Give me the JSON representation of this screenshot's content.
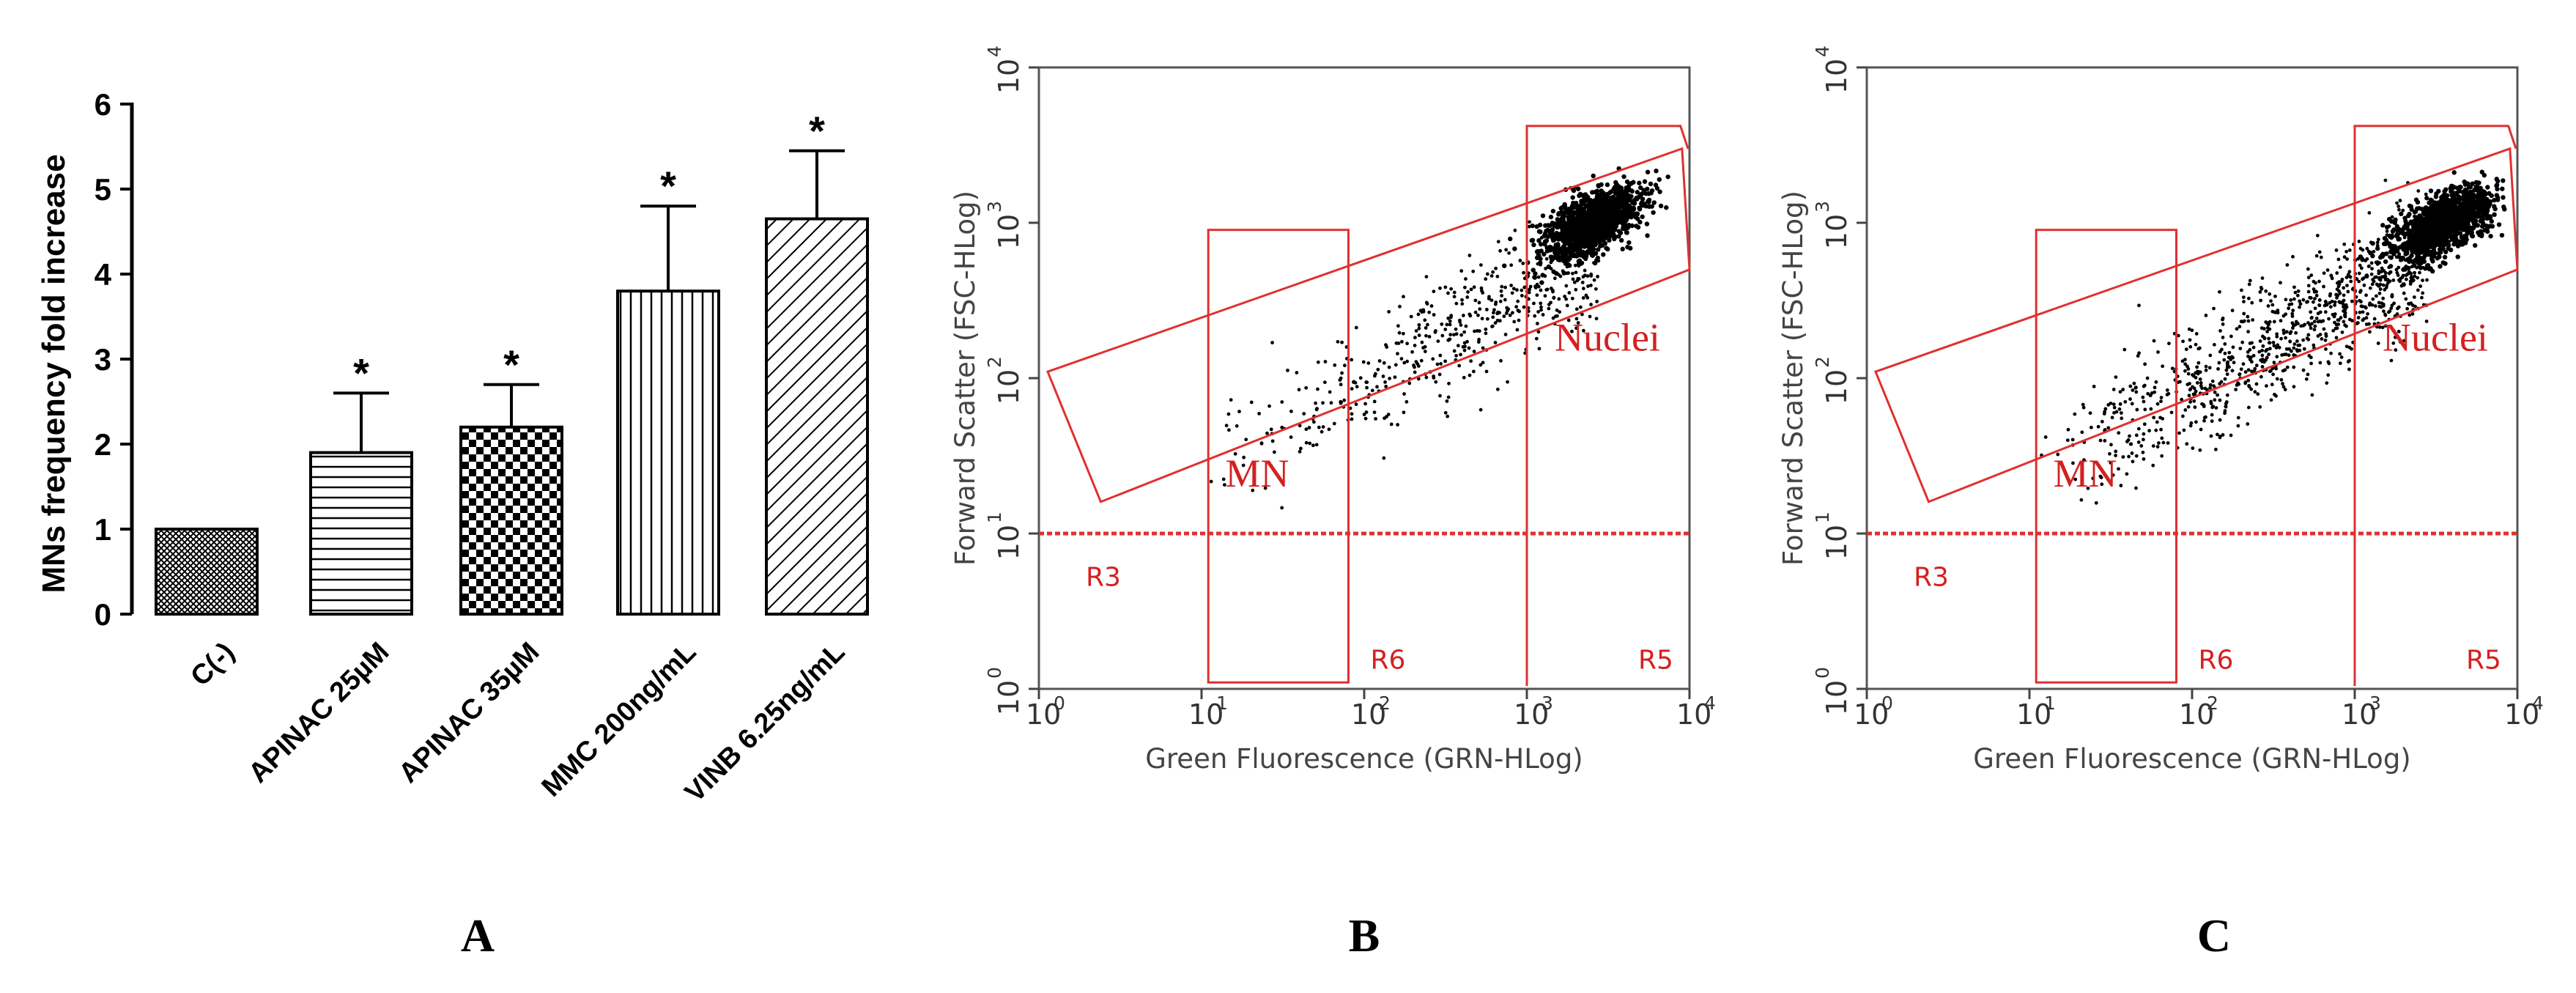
{
  "panels": {
    "a": "A",
    "b": "B",
    "c": "C"
  },
  "colors": {
    "gate": "#e03030",
    "dots": "#000000",
    "bar_fill": "#ffffff",
    "bar_edge": "#000000"
  },
  "chart_data": [
    {
      "panel": "A",
      "type": "bar",
      "xlabel": "",
      "ylabel": "MNs frequency fold increase",
      "ylim": [
        0,
        6
      ],
      "yticks": [
        "0",
        "1",
        "2",
        "3",
        "4",
        "5",
        "6"
      ],
      "categories": [
        "C(-)",
        "APINAC 25µM",
        "APINAC 35µM",
        "MMC 200ng/mL",
        "VINB 6.25ng/mL"
      ],
      "values": [
        1.0,
        1.9,
        2.2,
        3.8,
        4.65
      ],
      "error_upper": [
        0.0,
        0.7,
        0.5,
        1.0,
        0.8
      ],
      "annotations": [
        "",
        "*",
        "*",
        "*",
        "*"
      ],
      "patterns": [
        "crosshatch-dense",
        "horizontal-lines",
        "checkerboard",
        "vertical-lines",
        "diagonal-lines"
      ]
    },
    {
      "panel": "B",
      "type": "scatter",
      "xlabel": "Green Fluorescence (GRN-HLog)",
      "ylabel": "Forward Scatter (FSC-HLog)",
      "x_scale": "log",
      "y_scale": "log",
      "xlim": [
        1,
        10000
      ],
      "ylim": [
        1,
        10000
      ],
      "xticks": [
        "10",
        "10",
        "10",
        "10",
        "10"
      ],
      "xtick_exponents": [
        "0",
        "1",
        "2",
        "3",
        "4"
      ],
      "yticks": [
        "10",
        "10",
        "10",
        "10",
        "10"
      ],
      "ytick_exponents": [
        "0",
        "1",
        "2",
        "3",
        "4"
      ],
      "gates": {
        "nuclei": "Nuclei",
        "mn": "MN",
        "r3": "R3",
        "r5": "R5",
        "r6": "R6"
      },
      "threshold_y": 10,
      "cluster_center": [
        2500,
        1000
      ],
      "sparse_points": 520
    },
    {
      "panel": "C",
      "type": "scatter",
      "xlabel": "Green Fluorescence (GRN-HLog)",
      "ylabel": "Forward Scatter (FSC-HLog)",
      "x_scale": "log",
      "y_scale": "log",
      "xlim": [
        1,
        10000
      ],
      "ylim": [
        1,
        10000
      ],
      "xticks": [
        "10",
        "10",
        "10",
        "10",
        "10"
      ],
      "xtick_exponents": [
        "0",
        "1",
        "2",
        "3",
        "4"
      ],
      "yticks": [
        "10",
        "10",
        "10",
        "10",
        "10"
      ],
      "ytick_exponents": [
        "0",
        "1",
        "2",
        "3",
        "4"
      ],
      "gates": {
        "nuclei": "Nuclei",
        "mn": "MN",
        "r3": "R3",
        "r5": "R5",
        "r6": "R6"
      },
      "threshold_y": 10,
      "cluster_center": [
        3500,
        1000
      ],
      "sparse_points": 950
    }
  ]
}
